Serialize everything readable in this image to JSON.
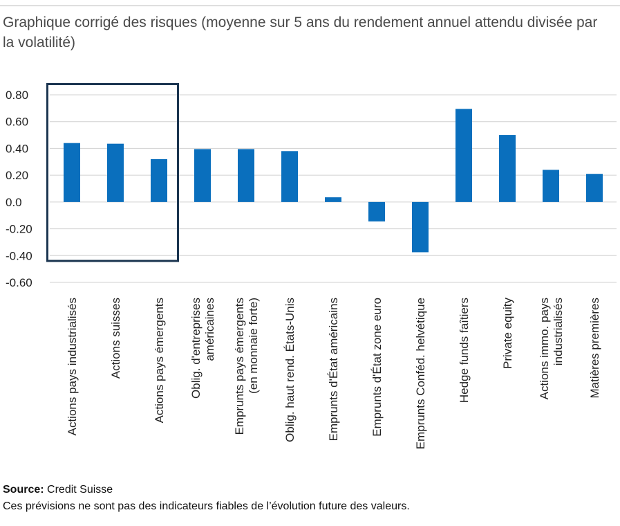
{
  "header": {
    "title": "Graphique corrigé des risques (moyenne sur 5 ans du rendement annuel attendu divisée par la volatilité)"
  },
  "footer": {
    "source_label": "Source:",
    "source_value": "Credit Suisse",
    "disclaimer": "Ces prévisions ne sont pas des indicateurs fiables de l’évolution future des valeurs."
  },
  "colors": {
    "bar": "#0a6fbd",
    "highlight_box": "#1b3550",
    "grid": "#d0d0d0"
  },
  "chart_data": {
    "type": "bar",
    "title": "Graphique corrigé des risques (moyenne sur 5 ans du rendement annuel attendu divisée par la volatilité)",
    "xlabel": "",
    "ylabel": "",
    "ylim": [
      -0.6,
      0.8
    ],
    "yticks": [
      0.8,
      0.6,
      0.4,
      0.2,
      0.0,
      -0.2,
      -0.4,
      -0.6
    ],
    "ytick_labels": [
      "0.80",
      "0.60",
      "0.40",
      "0.20",
      "0.0",
      "-0.20",
      "-0.40",
      "-0.60"
    ],
    "grid": true,
    "categories": [
      [
        "Actions pays industrialisés"
      ],
      [
        "Actions suisses"
      ],
      [
        "Actions pays émergents"
      ],
      [
        "Oblig. d'entreprises",
        "américaines"
      ],
      [
        "Emprunts pays émergents",
        "(en monnaie forte)"
      ],
      [
        "Oblig. haut rend. États-Unis"
      ],
      [
        "Emprunts d'État américains"
      ],
      [
        "Emprunts d'État zone euro"
      ],
      [
        "Emprunts Conféd. helvétique"
      ],
      [
        "Hedge funds faîtiers"
      ],
      [
        "Private equity"
      ],
      [
        "Actions immo. pays",
        "industrialisés"
      ],
      [
        "Matières premières"
      ]
    ],
    "values": [
      0.44,
      0.435,
      0.32,
      0.395,
      0.395,
      0.38,
      0.035,
      -0.145,
      -0.375,
      0.695,
      0.5,
      0.24,
      0.21
    ],
    "highlight": {
      "from_index": 0,
      "to_index": 2,
      "y_range": [
        -0.44,
        0.88
      ]
    }
  }
}
